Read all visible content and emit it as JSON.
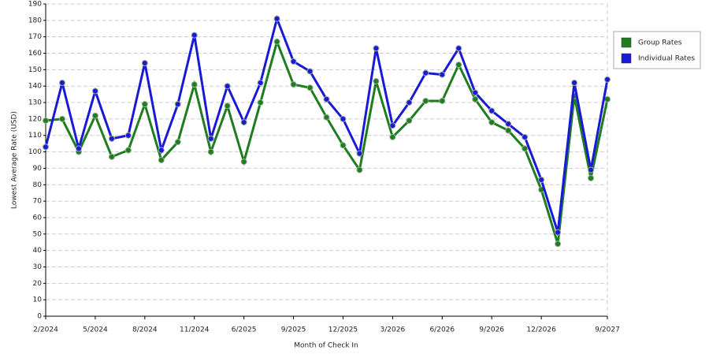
{
  "chart_data": {
    "type": "line",
    "x_label": "Month of Check In",
    "y_label": "Lowest Average Rate (USD)",
    "categories": [
      "2/2024",
      null,
      null,
      "5/2024",
      null,
      null,
      "8/2024",
      null,
      null,
      "11/2024",
      null,
      null,
      "6/2025",
      null,
      null,
      "9/2025",
      null,
      null,
      "12/2025",
      null,
      null,
      "3/2026",
      null,
      null,
      "6/2026",
      null,
      null,
      "9/2026",
      null,
      null,
      "12/2026",
      null,
      null,
      null,
      "9/2027"
    ],
    "series": [
      {
        "name": "Group Rates",
        "color": "#1e7d1e",
        "values": [
          119,
          120,
          100,
          122,
          97,
          101,
          129,
          95,
          106,
          141,
          100,
          128,
          94,
          130,
          167,
          141,
          139,
          121,
          104,
          89,
          143,
          109,
          119,
          131,
          131,
          153,
          132,
          118,
          113,
          102,
          77,
          44,
          134,
          84,
          132
        ]
      },
      {
        "name": "Individual Rates",
        "color": "#1a1ad6",
        "values": [
          103,
          142,
          102,
          137,
          108,
          110,
          154,
          101,
          129,
          171,
          108,
          140,
          118,
          142,
          181,
          155,
          149,
          132,
          120,
          99,
          163,
          116,
          130,
          148,
          147,
          163,
          136,
          125,
          117,
          109,
          83,
          51,
          142,
          89,
          144
        ]
      }
    ],
    "ylim": [
      0,
      190
    ],
    "yticks": [
      0,
      10,
      20,
      30,
      40,
      50,
      60,
      70,
      80,
      90,
      100,
      110,
      120,
      130,
      140,
      150,
      160,
      170,
      180,
      190
    ],
    "grid": true,
    "legend": "right"
  }
}
